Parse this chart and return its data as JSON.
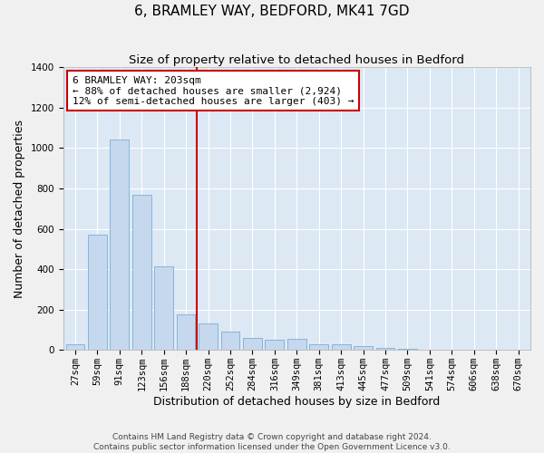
{
  "title": "6, BRAMLEY WAY, BEDFORD, MK41 7GD",
  "subtitle": "Size of property relative to detached houses in Bedford",
  "xlabel": "Distribution of detached houses by size in Bedford",
  "ylabel": "Number of detached properties",
  "footer_line1": "Contains HM Land Registry data © Crown copyright and database right 2024.",
  "footer_line2": "Contains public sector information licensed under the Open Government Licence v3.0.",
  "annotation_line1": "6 BRAMLEY WAY: 203sqm",
  "annotation_line2": "← 88% of detached houses are smaller (2,924)",
  "annotation_line3": "12% of semi-detached houses are larger (403) →",
  "categories": [
    "27sqm",
    "59sqm",
    "91sqm",
    "123sqm",
    "156sqm",
    "188sqm",
    "220sqm",
    "252sqm",
    "284sqm",
    "316sqm",
    "349sqm",
    "381sqm",
    "413sqm",
    "445sqm",
    "477sqm",
    "509sqm",
    "541sqm",
    "574sqm",
    "606sqm",
    "638sqm",
    "670sqm"
  ],
  "values": [
    30,
    570,
    1040,
    770,
    415,
    175,
    130,
    90,
    60,
    50,
    55,
    30,
    30,
    20,
    10,
    5,
    0,
    0,
    0,
    0,
    0
  ],
  "bar_color": "#c5d8ee",
  "bar_edge_color": "#7aadd4",
  "vline_color": "#cc0000",
  "vline_x": 5.5,
  "ylim": [
    0,
    1400
  ],
  "yticks": [
    0,
    200,
    400,
    600,
    800,
    1000,
    1200,
    1400
  ],
  "plot_bg_color": "#dde8f5",
  "fig_bg_color": "#f0f0f0",
  "annotation_box_facecolor": "#ffffff",
  "annotation_box_edgecolor": "#cc0000",
  "title_fontsize": 11,
  "subtitle_fontsize": 9.5,
  "xlabel_fontsize": 9,
  "ylabel_fontsize": 9,
  "tick_fontsize": 7.5,
  "annotation_fontsize": 8,
  "footer_fontsize": 6.5
}
